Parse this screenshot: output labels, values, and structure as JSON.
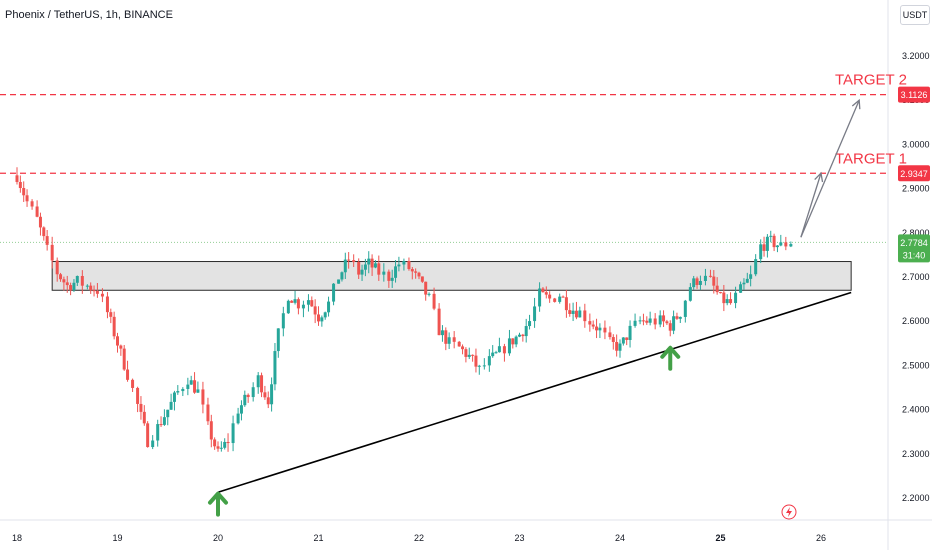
{
  "header": {
    "title": "Phoenix / TetherUS, 1h, BINANCE",
    "currency": "USDT"
  },
  "colors": {
    "up": "#26a69a",
    "down": "#ef5350",
    "target": "#f23645",
    "price_tag": "#4caf50",
    "arrow": "#43a047",
    "trendline": "#000000",
    "zone_fill": "#d9d9d9"
  },
  "chart_data": {
    "type": "candlestick",
    "ylim": [
      2.16,
      3.25
    ],
    "y_ticks": [
      2.2,
      2.3,
      2.4,
      2.5,
      2.6,
      2.7,
      2.8,
      2.9,
      3.0,
      3.1,
      3.2
    ],
    "y_tick_labels": [
      "2.2000",
      "2.3000",
      "2.4000",
      "2.5000",
      "2.6000",
      "2.7000",
      "2.8000",
      "2.9000",
      "3.0000",
      "3.1000",
      "3.2000"
    ],
    "x_ticks": [
      {
        "day": 18,
        "label": "18"
      },
      {
        "day": 19,
        "label": "19"
      },
      {
        "day": 20,
        "label": "20"
      },
      {
        "day": 21,
        "label": "21"
      },
      {
        "day": 22,
        "label": "22"
      },
      {
        "day": 23,
        "label": "23"
      },
      {
        "day": 24,
        "label": "24"
      },
      {
        "day": 25,
        "label": "25",
        "bold": true
      },
      {
        "day": 26,
        "label": "26"
      }
    ],
    "closes": [
      [
        18.0,
        2.93
      ],
      [
        18.1,
        2.87
      ],
      [
        18.2,
        2.83
      ],
      [
        18.3,
        2.76
      ],
      [
        18.4,
        2.71
      ],
      [
        18.5,
        2.68
      ],
      [
        18.6,
        2.69
      ],
      [
        18.7,
        2.68
      ],
      [
        18.8,
        2.67
      ],
      [
        18.9,
        2.62
      ],
      [
        19.0,
        2.55
      ],
      [
        19.1,
        2.48
      ],
      [
        19.2,
        2.41
      ],
      [
        19.3,
        2.33
      ],
      [
        19.4,
        2.36
      ],
      [
        19.5,
        2.4
      ],
      [
        19.6,
        2.44
      ],
      [
        19.7,
        2.47
      ],
      [
        19.8,
        2.44
      ],
      [
        19.9,
        2.36
      ],
      [
        20.0,
        2.3
      ],
      [
        20.1,
        2.33
      ],
      [
        20.2,
        2.4
      ],
      [
        20.3,
        2.43
      ],
      [
        20.4,
        2.47
      ],
      [
        20.5,
        2.42
      ],
      [
        20.6,
        2.57
      ],
      [
        20.7,
        2.66
      ],
      [
        20.8,
        2.64
      ],
      [
        20.9,
        2.65
      ],
      [
        21.0,
        2.61
      ],
      [
        21.1,
        2.64
      ],
      [
        21.2,
        2.7
      ],
      [
        21.3,
        2.74
      ],
      [
        21.4,
        2.71
      ],
      [
        21.5,
        2.73
      ],
      [
        21.6,
        2.71
      ],
      [
        21.7,
        2.7
      ],
      [
        21.8,
        2.73
      ],
      [
        21.9,
        2.72
      ],
      [
        22.0,
        2.69
      ],
      [
        22.1,
        2.65
      ],
      [
        22.2,
        2.58
      ],
      [
        22.3,
        2.55
      ],
      [
        22.4,
        2.54
      ],
      [
        22.5,
        2.52
      ],
      [
        22.6,
        2.49
      ],
      [
        22.7,
        2.51
      ],
      [
        22.8,
        2.53
      ],
      [
        22.9,
        2.55
      ],
      [
        23.0,
        2.57
      ],
      [
        23.1,
        2.6
      ],
      [
        23.2,
        2.66
      ],
      [
        23.3,
        2.65
      ],
      [
        23.4,
        2.66
      ],
      [
        23.5,
        2.63
      ],
      [
        23.6,
        2.62
      ],
      [
        23.7,
        2.6
      ],
      [
        23.8,
        2.58
      ],
      [
        23.9,
        2.55
      ],
      [
        24.0,
        2.54
      ],
      [
        24.1,
        2.58
      ],
      [
        24.2,
        2.6
      ],
      [
        24.3,
        2.6
      ],
      [
        24.4,
        2.6
      ],
      [
        24.5,
        2.59
      ],
      [
        24.6,
        2.62
      ],
      [
        24.7,
        2.68
      ],
      [
        24.8,
        2.7
      ],
      [
        24.9,
        2.69
      ],
      [
        25.0,
        2.65
      ],
      [
        25.1,
        2.64
      ],
      [
        25.2,
        2.67
      ],
      [
        25.3,
        2.7
      ],
      [
        25.4,
        2.77
      ],
      [
        25.5,
        2.78
      ],
      [
        25.6,
        2.77
      ],
      [
        25.7,
        2.78
      ]
    ],
    "resistance_zone": [
      2.67,
      2.735
    ],
    "trendline": {
      "from": {
        "day": 20.0,
        "price": 2.213
      },
      "to": {
        "day": 26.3,
        "price": 2.665
      }
    },
    "target_1": {
      "label": "TARGET 1",
      "price_label": "2.9347",
      "price": 2.9347
    },
    "target_2": {
      "label": "TARGET 2",
      "price_label": "3.1126",
      "price": 3.1126
    },
    "last_price": {
      "value_label": "2.7784",
      "countdown": "31:40",
      "price": 2.7784
    },
    "up_arrows": [
      {
        "day": 20.0,
        "price": 2.185
      },
      {
        "day": 24.5,
        "price": 2.515
      }
    ],
    "projection": [
      {
        "from": {
          "day": 25.8,
          "price": 2.79
        },
        "to": {
          "day": 26.0,
          "price": 2.935
        }
      },
      {
        "from": {
          "day": 25.8,
          "price": 2.79
        },
        "to": {
          "day": 26.38,
          "price": 3.1
        }
      }
    ]
  }
}
